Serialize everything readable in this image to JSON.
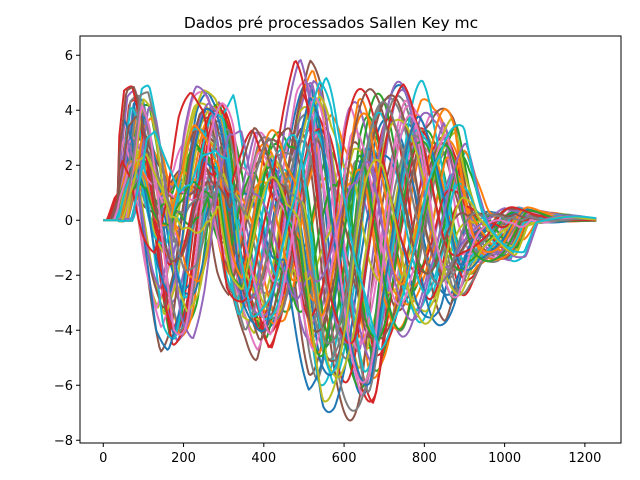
{
  "chart_data": {
    "type": "line",
    "title": "Dados pré processados Sallen Key mc",
    "xlabel": "",
    "ylabel": "",
    "xlim": [
      -58,
      1290
    ],
    "ylim": [
      -8.1,
      6.7
    ],
    "xticks": [
      0,
      200,
      400,
      600,
      800,
      1000,
      1200
    ],
    "yticks": [
      -8,
      -6,
      -4,
      -2,
      0,
      2,
      4,
      6
    ],
    "xtick_labels": [
      "0",
      "200",
      "400",
      "600",
      "800",
      "1000",
      "1200"
    ],
    "ytick_labels": [
      "−8",
      "−6",
      "−4",
      "−2",
      "0",
      "2",
      "4",
      "6"
    ],
    "grid": false,
    "legend": "none",
    "series_count": 60,
    "colors": [
      "#1f77b4",
      "#ff7f0e",
      "#2ca02c",
      "#d62728",
      "#9467bd",
      "#8c564b",
      "#e377c2",
      "#7f7f7f",
      "#bcbd22",
      "#17becf"
    ],
    "envelope": {
      "x": [
        0,
        40,
        60,
        80,
        100,
        130,
        160,
        190,
        220,
        250,
        280,
        310,
        340,
        370,
        400,
        420,
        450,
        480,
        510,
        540,
        570,
        600,
        630,
        660,
        690,
        720,
        750,
        780,
        810,
        840,
        870,
        900,
        930,
        960,
        990,
        1020,
        1050,
        1100,
        1150,
        1200,
        1230
      ],
      "upper": [
        0.05,
        0.1,
        2.2,
        4.9,
        4.9,
        3.2,
        1.6,
        2.0,
        4.0,
        4.9,
        4.9,
        4.8,
        2.0,
        2.5,
        3.5,
        3.4,
        3.2,
        4.6,
        6.0,
        5.5,
        3.7,
        3.0,
        4.6,
        4.8,
        4.9,
        4.9,
        5.1,
        5.1,
        4.3,
        4.2,
        4.1,
        2.0,
        0.6,
        0.3,
        0.2,
        0.5,
        0.5,
        0.3,
        0.2,
        0.08,
        0.05
      ],
      "lower": [
        -0.05,
        -0.05,
        0.8,
        1.2,
        0.5,
        -2.5,
        -4.9,
        -5.0,
        -3.6,
        -1.0,
        0.5,
        -2.6,
        -4.6,
        -4.6,
        -5.2,
        -4.5,
        -3.8,
        -2.5,
        -4.7,
        -6.8,
        -7.3,
        -7.3,
        -7.3,
        -7.3,
        -5.5,
        -4.8,
        -4.4,
        -3.9,
        -4.0,
        -3.8,
        -3.7,
        -2.5,
        -1.7,
        -1.6,
        -1.6,
        -1.5,
        -0.2,
        -0.1,
        -0.05,
        -0.03,
        -0.02
      ]
    }
  }
}
